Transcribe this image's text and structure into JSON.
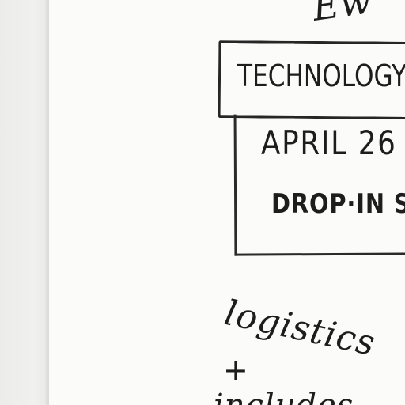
{
  "photo": {
    "top_fragment": "Ew",
    "header_text": "TECHNOLOGY",
    "date_text": "APRIL 26",
    "subtitle_text": "DROP·IN S",
    "note_text": "logistics",
    "plus_text": "+",
    "bottom_text": "includes"
  }
}
